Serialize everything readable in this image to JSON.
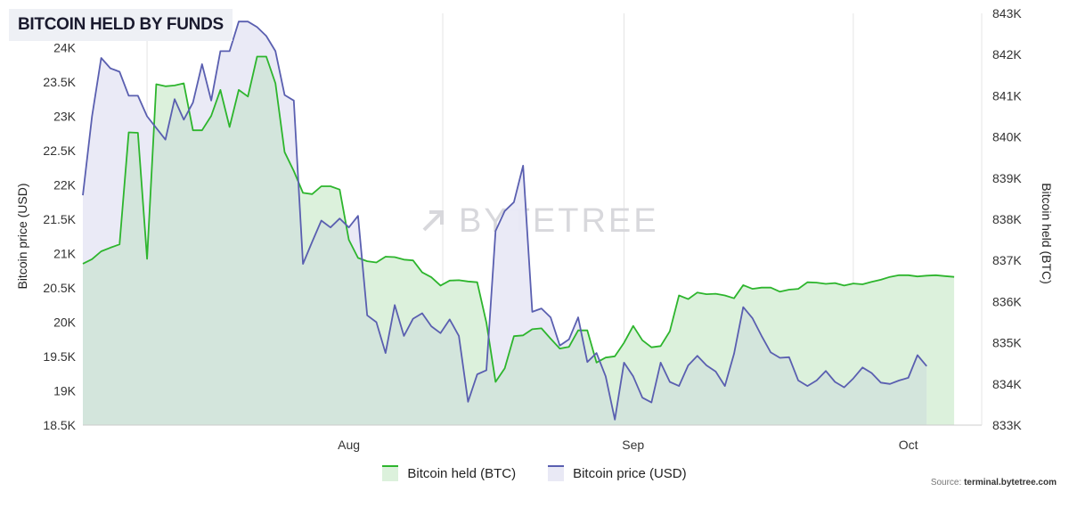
{
  "title": "BITCOIN HELD BY FUNDS",
  "watermark": "BYTETREE",
  "source_label": "Source:",
  "source_site": "terminal.bytetree.com",
  "colors": {
    "btc_held_line": "#2db52d",
    "btc_held_fill": "#dcf1dc",
    "btc_price_line": "#5a5fb0",
    "btc_price_fill": "#e9e9f5",
    "overlap_fill": "#d3e5dc",
    "grid": "#e4e4e4"
  },
  "chart_data": {
    "type": "area",
    "x_ticks": [
      {
        "label": "Aug",
        "date": "2022-08-01"
      },
      {
        "label": "Sep",
        "date": "2022-09-01"
      },
      {
        "label": "Oct",
        "date": "2022-10-01"
      }
    ],
    "x_range": [
      "2022-07-03",
      "2022-10-09"
    ],
    "y_left": {
      "label": "Bitcoin price (USD)",
      "range": [
        18500,
        24500
      ],
      "ticks": [
        {
          "value": 18500,
          "label": "18.5K"
        },
        {
          "value": 19000,
          "label": "19K"
        },
        {
          "value": 19500,
          "label": "19.5K"
        },
        {
          "value": 20000,
          "label": "20K"
        },
        {
          "value": 20500,
          "label": "20.5K"
        },
        {
          "value": 21000,
          "label": "21K"
        },
        {
          "value": 21500,
          "label": "21.5K"
        },
        {
          "value": 22000,
          "label": "22K"
        },
        {
          "value": 22500,
          "label": "22.5K"
        },
        {
          "value": 23000,
          "label": "23K"
        },
        {
          "value": 23500,
          "label": "23.5K"
        },
        {
          "value": 24000,
          "label": "24K"
        }
      ]
    },
    "y_right": {
      "label": "Bitcoin held (BTC)",
      "range": [
        833000,
        843000
      ],
      "ticks": [
        {
          "value": 833000,
          "label": "833K"
        },
        {
          "value": 834000,
          "label": "834K"
        },
        {
          "value": 835000,
          "label": "835K"
        },
        {
          "value": 836000,
          "label": "836K"
        },
        {
          "value": 837000,
          "label": "837K"
        },
        {
          "value": 838000,
          "label": "838K"
        },
        {
          "value": 839000,
          "label": "839K"
        },
        {
          "value": 840000,
          "label": "840K"
        },
        {
          "value": 841000,
          "label": "841K"
        },
        {
          "value": 842000,
          "label": "842K"
        },
        {
          "value": 843000,
          "label": "843K"
        }
      ]
    },
    "legend_position": "bottom-center",
    "grid": "vertical",
    "series": [
      {
        "name": "Bitcoin held (BTC)",
        "axis": "right",
        "values": [
          [
            0,
            836920
          ],
          [
            1,
            837030
          ],
          [
            2,
            837220
          ],
          [
            3,
            837310
          ],
          [
            4,
            837390
          ],
          [
            5,
            840110
          ],
          [
            6,
            840100
          ],
          [
            7,
            837040
          ],
          [
            8,
            841280
          ],
          [
            9,
            841230
          ],
          [
            10,
            841250
          ],
          [
            11,
            841300
          ],
          [
            12,
            840160
          ],
          [
            13,
            840160
          ],
          [
            14,
            840510
          ],
          [
            15,
            841140
          ],
          [
            16,
            840240
          ],
          [
            17,
            841140
          ],
          [
            18,
            840980
          ],
          [
            19,
            841950
          ],
          [
            20,
            841950
          ],
          [
            21,
            841300
          ],
          [
            22,
            839630
          ],
          [
            23,
            839170
          ],
          [
            24,
            838640
          ],
          [
            25,
            838610
          ],
          [
            26,
            838800
          ],
          [
            27,
            838800
          ],
          [
            28,
            838720
          ],
          [
            29,
            837500
          ],
          [
            30,
            837060
          ],
          [
            31,
            836980
          ],
          [
            32,
            836950
          ],
          [
            33,
            837090
          ],
          [
            34,
            837080
          ],
          [
            35,
            837020
          ],
          [
            36,
            837000
          ],
          [
            37,
            836710
          ],
          [
            38,
            836590
          ],
          [
            39,
            836390
          ],
          [
            40,
            836510
          ],
          [
            41,
            836520
          ],
          [
            42,
            836490
          ],
          [
            43,
            836470
          ],
          [
            44,
            835490
          ],
          [
            45,
            834050
          ],
          [
            46,
            834380
          ],
          [
            47,
            835160
          ],
          [
            48,
            835180
          ],
          [
            49,
            835330
          ],
          [
            50,
            835350
          ],
          [
            51,
            835100
          ],
          [
            52,
            834860
          ],
          [
            53,
            834900
          ],
          [
            54,
            835300
          ],
          [
            55,
            835300
          ],
          [
            56,
            834520
          ],
          [
            57,
            834640
          ],
          [
            58,
            834670
          ],
          [
            59,
            835000
          ],
          [
            60,
            835410
          ],
          [
            61,
            835060
          ],
          [
            62,
            834890
          ],
          [
            63,
            834920
          ],
          [
            64,
            835280
          ],
          [
            65,
            836150
          ],
          [
            66,
            836060
          ],
          [
            67,
            836220
          ],
          [
            68,
            836180
          ],
          [
            69,
            836190
          ],
          [
            70,
            836150
          ],
          [
            71,
            836080
          ],
          [
            72,
            836400
          ],
          [
            73,
            836310
          ],
          [
            74,
            836340
          ],
          [
            75,
            836340
          ],
          [
            76,
            836240
          ],
          [
            77,
            836290
          ],
          [
            78,
            836310
          ],
          [
            79,
            836470
          ],
          [
            80,
            836460
          ],
          [
            81,
            836430
          ],
          [
            82,
            836450
          ],
          [
            83,
            836390
          ],
          [
            84,
            836440
          ],
          [
            85,
            836420
          ],
          [
            86,
            836480
          ],
          [
            87,
            836530
          ],
          [
            88,
            836600
          ],
          [
            89,
            836640
          ],
          [
            90,
            836640
          ],
          [
            91,
            836610
          ],
          [
            92,
            836630
          ],
          [
            93,
            836640
          ],
          [
            94,
            836620
          ],
          [
            95,
            836600
          ]
        ]
      },
      {
        "name": "Bitcoin price (USD)",
        "axis": "left",
        "values": [
          [
            0,
            21850
          ],
          [
            1,
            23000
          ],
          [
            2,
            23850
          ],
          [
            3,
            23700
          ],
          [
            4,
            23650
          ],
          [
            5,
            23300
          ],
          [
            6,
            23300
          ],
          [
            7,
            23000
          ],
          [
            8,
            22830
          ],
          [
            9,
            22660
          ],
          [
            10,
            23250
          ],
          [
            11,
            22950
          ],
          [
            12,
            23200
          ],
          [
            13,
            23760
          ],
          [
            14,
            23230
          ],
          [
            15,
            23950
          ],
          [
            16,
            23950
          ],
          [
            17,
            24380
          ],
          [
            18,
            24380
          ],
          [
            19,
            24300
          ],
          [
            20,
            24170
          ],
          [
            21,
            23950
          ],
          [
            22,
            23310
          ],
          [
            23,
            23230
          ],
          [
            24,
            20850
          ],
          [
            25,
            21170
          ],
          [
            26,
            21480
          ],
          [
            27,
            21380
          ],
          [
            28,
            21510
          ],
          [
            29,
            21380
          ],
          [
            30,
            21550
          ],
          [
            31,
            20100
          ],
          [
            32,
            20000
          ],
          [
            33,
            19550
          ],
          [
            34,
            20250
          ],
          [
            35,
            19800
          ],
          [
            36,
            20050
          ],
          [
            37,
            20130
          ],
          [
            38,
            19940
          ],
          [
            39,
            19840
          ],
          [
            40,
            20040
          ],
          [
            41,
            19800
          ],
          [
            42,
            18840
          ],
          [
            43,
            19240
          ],
          [
            44,
            19300
          ],
          [
            45,
            21330
          ],
          [
            46,
            21620
          ],
          [
            47,
            21750
          ],
          [
            48,
            22280
          ],
          [
            49,
            20150
          ],
          [
            50,
            20200
          ],
          [
            51,
            20070
          ],
          [
            52,
            19660
          ],
          [
            53,
            19750
          ],
          [
            54,
            20070
          ],
          [
            55,
            19420
          ],
          [
            56,
            19550
          ],
          [
            57,
            19210
          ],
          [
            58,
            18580
          ],
          [
            59,
            19410
          ],
          [
            60,
            19210
          ],
          [
            61,
            18900
          ],
          [
            62,
            18830
          ],
          [
            63,
            19410
          ],
          [
            64,
            19130
          ],
          [
            65,
            19070
          ],
          [
            66,
            19370
          ],
          [
            67,
            19510
          ],
          [
            68,
            19370
          ],
          [
            69,
            19280
          ],
          [
            70,
            19070
          ],
          [
            71,
            19540
          ],
          [
            72,
            20220
          ],
          [
            73,
            20060
          ],
          [
            74,
            19800
          ],
          [
            75,
            19560
          ],
          [
            76,
            19480
          ],
          [
            77,
            19490
          ],
          [
            78,
            19150
          ],
          [
            79,
            19070
          ],
          [
            80,
            19150
          ],
          [
            81,
            19290
          ],
          [
            82,
            19130
          ],
          [
            83,
            19050
          ],
          [
            84,
            19180
          ],
          [
            85,
            19340
          ],
          [
            86,
            19260
          ],
          [
            87,
            19120
          ],
          [
            88,
            19100
          ],
          [
            89,
            19150
          ],
          [
            90,
            19190
          ],
          [
            91,
            19520
          ],
          [
            92,
            19360
          ]
        ]
      }
    ]
  }
}
